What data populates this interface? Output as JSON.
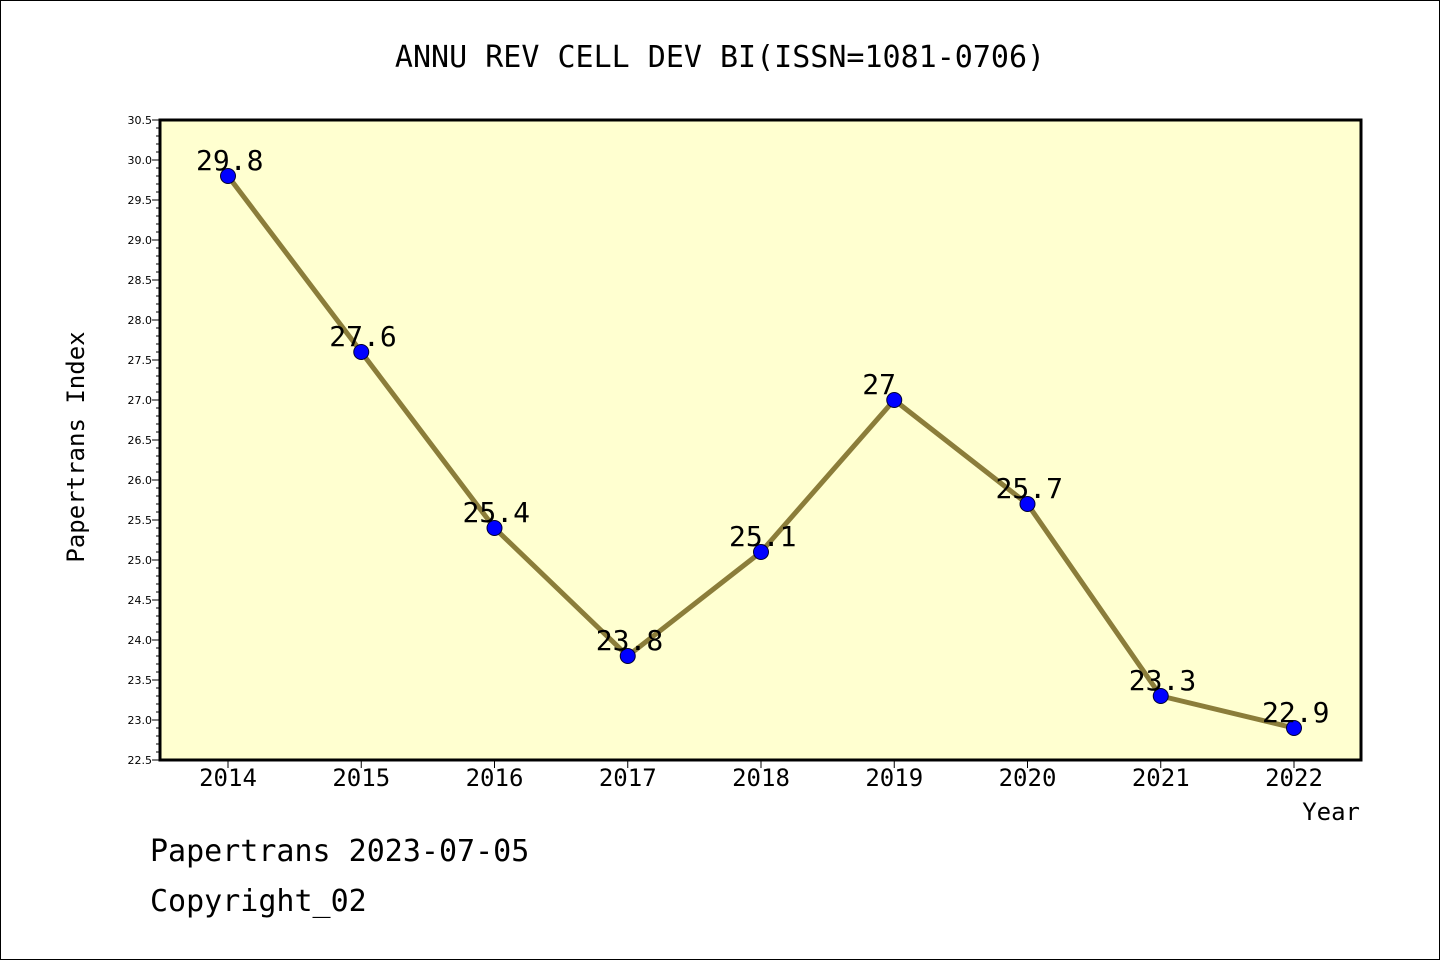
{
  "chart_data": {
    "type": "line",
    "title": "ANNU REV CELL DEV BI(ISSN=1081-0706)",
    "xlabel": "Year",
    "ylabel": "Papertrans Index",
    "categories": [
      "2014",
      "2015",
      "2016",
      "2017",
      "2018",
      "2019",
      "2020",
      "2021",
      "2022"
    ],
    "values": [
      29.8,
      27.6,
      25.4,
      23.8,
      25.1,
      27,
      25.7,
      23.3,
      22.9
    ],
    "data_labels": [
      "29.8",
      "27.6",
      "25.4",
      "23.8",
      "25.1",
      "27",
      "25.7",
      "23.3",
      "22.9"
    ],
    "ylim": [
      22.5,
      30.5
    ],
    "yticks": [
      "22.5",
      "23.0",
      "23.5",
      "24.0",
      "24.5",
      "25.0",
      "25.5",
      "26.0",
      "26.5",
      "27.0",
      "27.5",
      "28.0",
      "28.5",
      "29.0",
      "29.5",
      "30.0",
      "30.5"
    ],
    "grid": false,
    "legend": "none",
    "colors": {
      "plot_background": "#ffffd0",
      "line": "#8b7d3a",
      "marker": "#0000ff"
    }
  },
  "footer": {
    "line1": "Papertrans 2023-07-05",
    "line2": "Copyright_02"
  }
}
